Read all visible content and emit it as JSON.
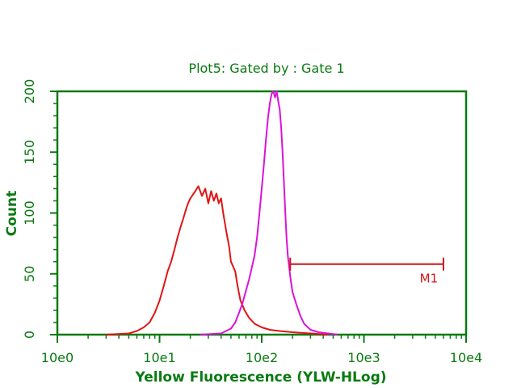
{
  "chart_data": {
    "type": "line",
    "title": "Plot5:  Gated by : Gate 1",
    "xlabel": "Yellow Fluorescence (YLW-HLog)",
    "ylabel": "Count",
    "x_scale": "log",
    "xlim": [
      1,
      10000
    ],
    "ylim": [
      0,
      200
    ],
    "x_tick_labels": [
      "10e0",
      "10e1",
      "10e2",
      "10e3",
      "10e4"
    ],
    "y_tick_labels": [
      "0",
      "50",
      "100",
      "150",
      "200"
    ],
    "grid": false,
    "colors": {
      "axis": "#0a7a12",
      "series_red": "#e01515",
      "series_magenta": "#d814d8",
      "marker": "#d21515"
    },
    "series": [
      {
        "color": "#e01515",
        "points": [
          [
            3,
            0
          ],
          [
            5,
            1
          ],
          [
            6,
            3
          ],
          [
            7,
            6
          ],
          [
            8,
            10
          ],
          [
            9,
            18
          ],
          [
            10,
            28
          ],
          [
            11,
            40
          ],
          [
            12,
            52
          ],
          [
            13,
            60
          ],
          [
            14,
            70
          ],
          [
            15,
            80
          ],
          [
            16,
            88
          ],
          [
            17,
            95
          ],
          [
            18,
            102
          ],
          [
            19,
            108
          ],
          [
            20,
            112
          ],
          [
            22,
            117
          ],
          [
            24,
            122
          ],
          [
            26,
            114
          ],
          [
            28,
            120
          ],
          [
            30,
            108
          ],
          [
            32,
            118
          ],
          [
            34,
            110
          ],
          [
            36,
            116
          ],
          [
            38,
            108
          ],
          [
            40,
            112
          ],
          [
            42,
            100
          ],
          [
            45,
            85
          ],
          [
            48,
            72
          ],
          [
            50,
            60
          ],
          [
            55,
            52
          ],
          [
            58,
            40
          ],
          [
            62,
            28
          ],
          [
            68,
            20
          ],
          [
            75,
            14
          ],
          [
            85,
            9
          ],
          [
            100,
            6
          ],
          [
            120,
            4
          ],
          [
            150,
            3
          ],
          [
            200,
            2
          ],
          [
            300,
            1
          ],
          [
            450,
            0
          ]
        ]
      },
      {
        "color": "#d814d8",
        "points": [
          [
            25,
            0
          ],
          [
            40,
            1
          ],
          [
            50,
            5
          ],
          [
            55,
            10
          ],
          [
            60,
            18
          ],
          [
            65,
            26
          ],
          [
            70,
            36
          ],
          [
            75,
            45
          ],
          [
            80,
            55
          ],
          [
            85,
            65
          ],
          [
            90,
            80
          ],
          [
            95,
            100
          ],
          [
            100,
            120
          ],
          [
            105,
            140
          ],
          [
            110,
            160
          ],
          [
            115,
            178
          ],
          [
            120,
            190
          ],
          [
            125,
            198
          ],
          [
            130,
            200
          ],
          [
            135,
            195
          ],
          [
            140,
            200
          ],
          [
            145,
            192
          ],
          [
            150,
            185
          ],
          [
            155,
            170
          ],
          [
            160,
            150
          ],
          [
            165,
            125
          ],
          [
            170,
            100
          ],
          [
            175,
            80
          ],
          [
            180,
            65
          ],
          [
            190,
            48
          ],
          [
            200,
            35
          ],
          [
            220,
            24
          ],
          [
            240,
            15
          ],
          [
            260,
            9
          ],
          [
            300,
            4
          ],
          [
            360,
            2
          ],
          [
            450,
            1
          ],
          [
            550,
            0
          ]
        ]
      }
    ],
    "markers": [
      {
        "label": "M1",
        "range": [
          190,
          6000
        ],
        "y": 58
      }
    ]
  }
}
